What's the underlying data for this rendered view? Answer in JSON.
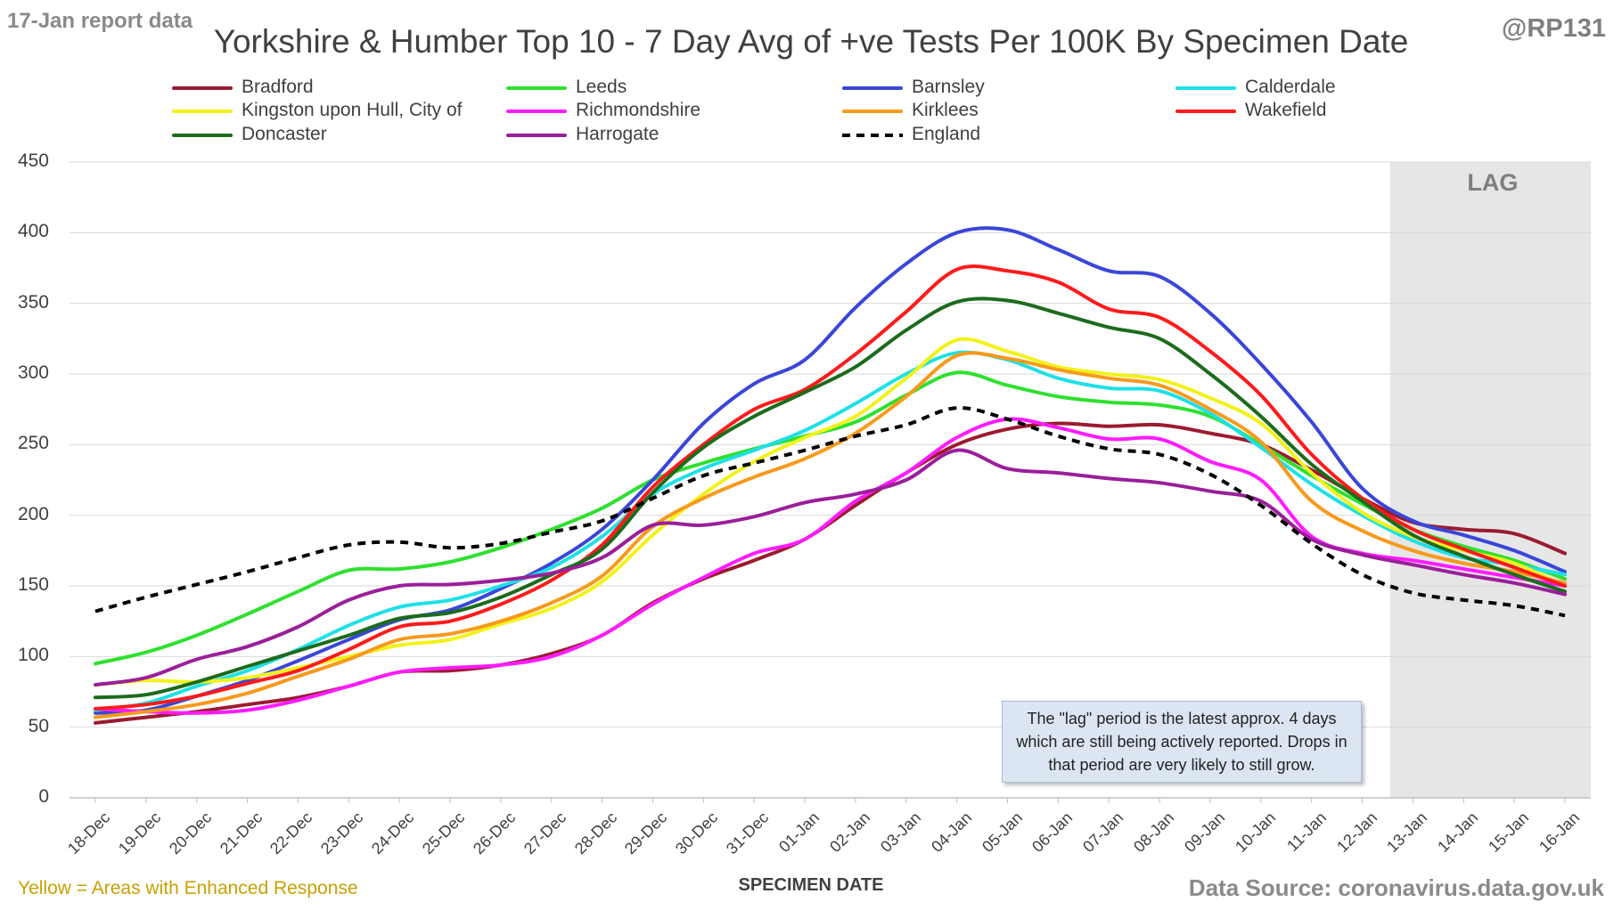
{
  "report_date": "17-Jan report data",
  "handle": "@RP131",
  "footnote": "Yellow = Areas with Enhanced Response",
  "source": "Data Source: coronavirus.data.gov.uk",
  "lag_label": "LAG",
  "note": "The \"lag\" period is the latest approx. 4 days which are still being actively reported. Drops in that period are very likely to still grow.",
  "chart_data": {
    "type": "line",
    "title": "Yorkshire & Humber Top 10 - 7 Day Avg of +ve Tests Per 100K By Specimen Date",
    "xlabel": "SPECIMEN DATE",
    "ylabel": "",
    "ylim": [
      0,
      450
    ],
    "yticks": [
      0,
      50,
      100,
      150,
      200,
      250,
      300,
      350,
      400,
      450
    ],
    "grid": "horizontal",
    "legend_position": "top",
    "lag_start": "13-Jan",
    "lag_end": "16-Jan",
    "categories": [
      "18-Dec",
      "19-Dec",
      "20-Dec",
      "21-Dec",
      "22-Dec",
      "23-Dec",
      "24-Dec",
      "25-Dec",
      "26-Dec",
      "27-Dec",
      "28-Dec",
      "29-Dec",
      "30-Dec",
      "31-Dec",
      "01-Jan",
      "02-Jan",
      "03-Jan",
      "04-Jan",
      "05-Jan",
      "06-Jan",
      "07-Jan",
      "08-Jan",
      "09-Jan",
      "10-Jan",
      "11-Jan",
      "12-Jan",
      "13-Jan",
      "14-Jan",
      "15-Jan",
      "16-Jan"
    ],
    "series": [
      {
        "name": "Bradford",
        "color": "#9b1b30",
        "dashed": false,
        "values": [
          53,
          57,
          61,
          66,
          71,
          79,
          89,
          90,
          94,
          102,
          115,
          138,
          155,
          168,
          183,
          207,
          230,
          250,
          261,
          265,
          263,
          264,
          258,
          250,
          232,
          212,
          195,
          190,
          187,
          173
        ]
      },
      {
        "name": "Leeds",
        "color": "#2fe02f",
        "dashed": false,
        "values": [
          95,
          103,
          115,
          130,
          146,
          161,
          162,
          167,
          177,
          190,
          205,
          225,
          237,
          247,
          256,
          266,
          285,
          301,
          292,
          284,
          280,
          278,
          270,
          250,
          228,
          208,
          190,
          178,
          168,
          155
        ]
      },
      {
        "name": "Barnsley",
        "color": "#3a46d8",
        "dashed": false,
        "values": [
          60,
          62,
          72,
          83,
          97,
          112,
          126,
          133,
          148,
          166,
          190,
          225,
          265,
          293,
          310,
          347,
          378,
          400,
          402,
          388,
          373,
          369,
          343,
          307,
          266,
          219,
          196,
          186,
          175,
          160
        ]
      },
      {
        "name": "Calderdale",
        "color": "#1ee0e6",
        "dashed": false,
        "values": [
          62,
          67,
          79,
          90,
          105,
          122,
          135,
          140,
          150,
          163,
          185,
          215,
          233,
          246,
          260,
          279,
          300,
          315,
          310,
          297,
          290,
          288,
          272,
          248,
          222,
          200,
          182,
          170,
          165,
          158
        ]
      },
      {
        "name": "Kingston upon Hull, City of",
        "color": "#f2f21a",
        "dashed": false,
        "values": [
          80,
          83,
          82,
          85,
          92,
          100,
          108,
          112,
          123,
          134,
          153,
          186,
          215,
          238,
          255,
          270,
          297,
          324,
          316,
          305,
          300,
          296,
          283,
          265,
          230,
          202,
          185,
          175,
          166,
          150
        ]
      },
      {
        "name": "Richmondshire",
        "color": "#ff1cff",
        "dashed": false,
        "values": [
          63,
          61,
          60,
          62,
          69,
          79,
          89,
          92,
          94,
          100,
          115,
          137,
          156,
          173,
          183,
          210,
          230,
          255,
          268,
          262,
          254,
          254,
          238,
          225,
          185,
          173,
          168,
          162,
          156,
          150
        ]
      },
      {
        "name": "Kirklees",
        "color": "#f79a1c",
        "dashed": false,
        "values": [
          57,
          61,
          66,
          74,
          86,
          98,
          112,
          116,
          125,
          138,
          157,
          192,
          212,
          227,
          240,
          258,
          284,
          313,
          311,
          303,
          297,
          292,
          275,
          252,
          210,
          189,
          175,
          166,
          160,
          152
        ]
      },
      {
        "name": "Wakefield",
        "color": "#ff1a1a",
        "dashed": false,
        "values": [
          63,
          66,
          72,
          81,
          90,
          105,
          121,
          125,
          137,
          154,
          179,
          220,
          250,
          275,
          289,
          314,
          344,
          374,
          373,
          365,
          346,
          340,
          316,
          285,
          243,
          212,
          190,
          176,
          163,
          150
        ]
      },
      {
        "name": "Doncaster",
        "color": "#1c6b1c",
        "dashed": false,
        "values": [
          71,
          73,
          82,
          93,
          104,
          115,
          127,
          131,
          142,
          158,
          176,
          216,
          248,
          270,
          287,
          305,
          331,
          351,
          352,
          343,
          333,
          325,
          300,
          270,
          236,
          210,
          186,
          171,
          158,
          146
        ]
      },
      {
        "name": "Harrogate",
        "color": "#9a1f9a",
        "dashed": false,
        "values": [
          80,
          85,
          98,
          107,
          121,
          140,
          150,
          151,
          154,
          159,
          170,
          193,
          193,
          199,
          209,
          215,
          225,
          246,
          233,
          230,
          226,
          223,
          217,
          210,
          183,
          172,
          165,
          158,
          152,
          144
        ]
      },
      {
        "name": "England",
        "color": "#000000",
        "dashed": true,
        "values": [
          132,
          142,
          151,
          160,
          170,
          179,
          181,
          177,
          180,
          188,
          196,
          212,
          228,
          237,
          246,
          256,
          264,
          276,
          268,
          256,
          247,
          243,
          229,
          207,
          180,
          158,
          145,
          140,
          136,
          129
        ]
      }
    ]
  }
}
